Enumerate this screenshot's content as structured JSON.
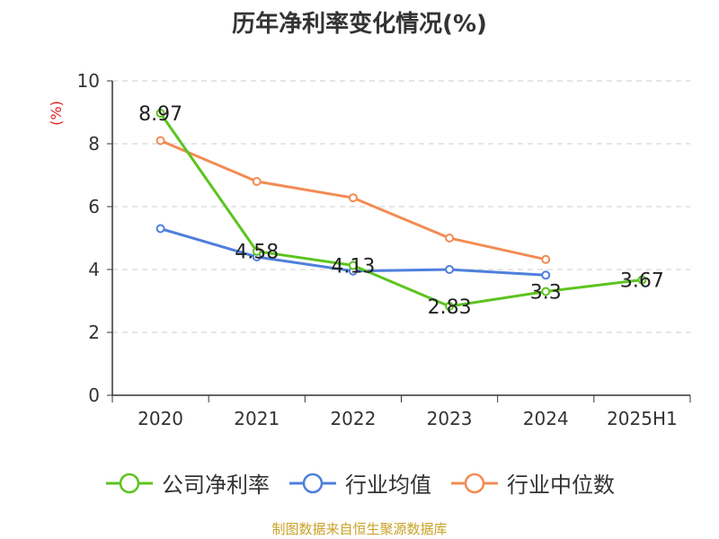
{
  "source": "制图数据来自恒生聚源数据库",
  "chart_data": {
    "type": "line",
    "title": "历年净利率变化情况(%)",
    "ylabel": "(%)",
    "ylim": [
      0,
      10
    ],
    "yticks": [
      "0",
      "2",
      "4",
      "6",
      "8",
      "10"
    ],
    "grid": true,
    "legend_position": "bottom",
    "categories": [
      "2020",
      "2021",
      "2022",
      "2023",
      "2024",
      "2025H1"
    ],
    "series": [
      {
        "name": "公司净利率",
        "color": "#5cc41f",
        "values": [
          8.97,
          4.58,
          4.13,
          2.83,
          3.3,
          3.67
        ],
        "labels": [
          "8.97",
          "4.58",
          "4.13",
          "2.83",
          "3.3",
          "3.67"
        ]
      },
      {
        "name": "行业均值",
        "color": "#4f7fdc",
        "values": [
          5.3,
          4.4,
          3.95,
          4.0,
          3.82,
          null
        ]
      },
      {
        "name": "行业中位数",
        "color": "#f28c54",
        "values": [
          8.1,
          6.8,
          6.28,
          5.0,
          4.32,
          null
        ]
      }
    ]
  }
}
